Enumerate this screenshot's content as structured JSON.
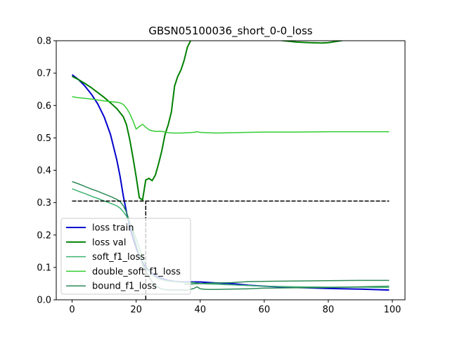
{
  "chart_data": {
    "type": "line",
    "title": "GBSN05100036_short_0-0_loss",
    "xlabel": "",
    "ylabel": "",
    "xlim": [
      -4.95,
      103.95
    ],
    "ylim": [
      0,
      0.8
    ],
    "xticks": [
      0,
      20,
      40,
      60,
      80,
      100
    ],
    "yticks": [
      0.0,
      0.1,
      0.2,
      0.3,
      0.4,
      0.5,
      0.6,
      0.7,
      0.8
    ],
    "grid": false,
    "legend_position": "lower-left",
    "series": [
      {
        "name": "loss train",
        "color": "#0000cc",
        "width": 2,
        "x": [
          0,
          2,
          4,
          6,
          8,
          10,
          12,
          14,
          15,
          16,
          17,
          18,
          19,
          20,
          21,
          22,
          23,
          24,
          25,
          26,
          27,
          28,
          30,
          32,
          34,
          36,
          38,
          40,
          45,
          50,
          55,
          60,
          70,
          80,
          90,
          99
        ],
        "y": [
          0.695,
          0.68,
          0.66,
          0.635,
          0.605,
          0.565,
          0.51,
          0.43,
          0.38,
          0.32,
          0.27,
          0.225,
          0.19,
          0.16,
          0.135,
          0.115,
          0.1,
          0.09,
          0.082,
          0.075,
          0.07,
          0.066,
          0.06,
          0.057,
          0.055,
          0.055,
          0.055,
          0.055,
          0.052,
          0.05,
          0.045,
          0.042,
          0.038,
          0.035,
          0.033,
          0.03
        ]
      },
      {
        "name": "loss val",
        "color": "#008000",
        "width": 2,
        "x": [
          0,
          2,
          4,
          6,
          8,
          10,
          12,
          14,
          16,
          17,
          18,
          19,
          20,
          21,
          22,
          23,
          24,
          25,
          26,
          27,
          28,
          29,
          30,
          31,
          32,
          33,
          34,
          35,
          36,
          37,
          38,
          39
        ],
        "y": [
          0.69,
          0.68,
          0.668,
          0.655,
          0.64,
          0.625,
          0.608,
          0.59,
          0.565,
          0.54,
          0.495,
          0.44,
          0.38,
          0.315,
          0.308,
          0.37,
          0.375,
          0.368,
          0.385,
          0.42,
          0.46,
          0.51,
          0.54,
          0.58,
          0.66,
          0.69,
          0.71,
          0.74,
          0.78,
          0.8,
          0.84,
          0.9
        ]
      },
      {
        "name": "loss val (upper)",
        "color": "#008000",
        "width": 2,
        "x": [
          58,
          62,
          66,
          70,
          74,
          78,
          80,
          82,
          84,
          86,
          88
        ],
        "y": [
          0.815,
          0.805,
          0.8,
          0.796,
          0.794,
          0.793,
          0.794,
          0.797,
          0.8,
          0.805,
          0.81
        ]
      },
      {
        "name": "soft_f1_loss",
        "color": "#3cb371",
        "width": 1.5,
        "x": [
          0,
          2,
          4,
          6,
          8,
          10,
          12,
          14,
          15,
          16,
          17,
          18,
          19,
          20,
          21,
          22,
          23,
          24,
          25,
          26,
          28,
          30,
          32,
          34,
          36,
          38,
          40,
          45,
          50,
          55,
          60,
          70,
          80,
          90,
          99
        ],
        "y": [
          0.343,
          0.335,
          0.328,
          0.32,
          0.313,
          0.305,
          0.298,
          0.29,
          0.283,
          0.272,
          0.258,
          0.238,
          0.215,
          0.188,
          0.16,
          0.132,
          0.108,
          0.09,
          0.078,
          0.07,
          0.062,
          0.058,
          0.056,
          0.054,
          0.053,
          0.053,
          0.05,
          0.048,
          0.046,
          0.044,
          0.042,
          0.04,
          0.039,
          0.039,
          0.038
        ]
      },
      {
        "name": "double_soft_f1_loss",
        "color": "#32cd32",
        "width": 1.5,
        "x": [
          0,
          2,
          4,
          6,
          8,
          10,
          12,
          14,
          15,
          16,
          17,
          18,
          19,
          20,
          21,
          22,
          23,
          24,
          25,
          26,
          28,
          30,
          32,
          34,
          36,
          38,
          39,
          40,
          42,
          45,
          50,
          55,
          60,
          70,
          80,
          90,
          99
        ],
        "y": [
          0.627,
          0.624,
          0.622,
          0.62,
          0.617,
          0.614,
          0.612,
          0.61,
          0.608,
          0.603,
          0.592,
          0.575,
          0.553,
          0.527,
          0.535,
          0.542,
          0.533,
          0.525,
          0.522,
          0.52,
          0.52,
          0.516,
          0.515,
          0.515,
          0.516,
          0.517,
          0.519,
          0.517,
          0.516,
          0.515,
          0.516,
          0.517,
          0.518,
          0.518,
          0.519,
          0.519,
          0.519
        ]
      },
      {
        "name": "bound_f1_loss",
        "color": "#2e8b57",
        "width": 1.5,
        "x": [
          0,
          2,
          4,
          6,
          8,
          10,
          12,
          14,
          15,
          16,
          17,
          18,
          19,
          20,
          21,
          22,
          23,
          24,
          25,
          26,
          27,
          28,
          30,
          32,
          34,
          36,
          38,
          39,
          40,
          42,
          45,
          50,
          55,
          60,
          70,
          80,
          90,
          99
        ],
        "y": [
          0.365,
          0.358,
          0.35,
          0.342,
          0.335,
          0.327,
          0.319,
          0.31,
          0.303,
          0.29,
          0.27,
          0.24,
          0.205,
          0.17,
          0.137,
          0.11,
          0.088,
          0.07,
          0.055,
          0.045,
          0.038,
          0.033,
          0.03,
          0.03,
          0.03,
          0.03,
          0.035,
          0.04,
          0.034,
          0.032,
          0.032,
          0.033,
          0.034,
          0.036,
          0.037,
          0.038,
          0.04,
          0.042
        ]
      },
      {
        "name": "bound_f1_loss (upper)",
        "color": "#2e8b57",
        "width": 1.5,
        "x": [
          35,
          40,
          45,
          50,
          55,
          60,
          70,
          80,
          90,
          99
        ],
        "y": [
          0.048,
          0.05,
          0.052,
          0.053,
          0.056,
          0.057,
          0.058,
          0.059,
          0.06,
          0.06
        ]
      }
    ],
    "reference_lines": [
      {
        "type": "horizontal",
        "y": 0.305,
        "x_from": 0,
        "x_to": 99,
        "color": "#000000",
        "dashed": true
      },
      {
        "type": "vertical",
        "x": 23,
        "y_from": 0,
        "y_to": 0.305,
        "color": "#000000",
        "dashed": true
      }
    ],
    "legend": [
      {
        "label": "loss train",
        "color": "#0000cc"
      },
      {
        "label": "loss val",
        "color": "#008000"
      },
      {
        "label": "soft_f1_loss",
        "color": "#3cb371"
      },
      {
        "label": "double_soft_f1_loss",
        "color": "#32cd32"
      },
      {
        "label": "bound_f1_loss",
        "color": "#2e8b57"
      }
    ]
  }
}
